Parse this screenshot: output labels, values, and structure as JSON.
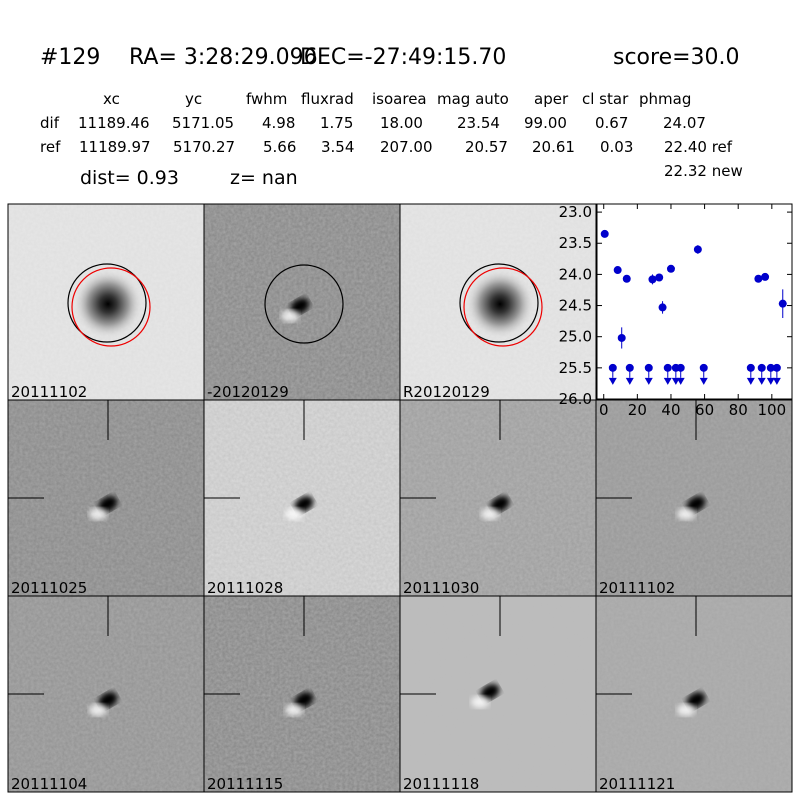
{
  "header": {
    "id": "#129",
    "ra": "RA= 3:28:29.096",
    "dec": "DEC=-27:49:15.70",
    "score": "score=30.0"
  },
  "table": {
    "columns": [
      "xc",
      "yc",
      "fwhm",
      "fluxrad",
      "isoarea",
      "mag auto",
      "aper",
      "cl star",
      "phmag"
    ],
    "rows": [
      {
        "label": "dif",
        "cells": [
          "11189.46",
          "5171.05",
          "4.98",
          "1.75",
          "18.00",
          "23.54",
          "99.00",
          "0.67",
          "24.07"
        ]
      },
      {
        "label": "ref",
        "cells": [
          "11189.97",
          "5170.27",
          "5.66",
          "3.54",
          "207.00",
          "20.57",
          "20.61",
          "0.03",
          "22.40 ref"
        ]
      }
    ],
    "extra": "22.32 new",
    "dist": "dist=  0.93",
    "z": "z=   nan"
  },
  "stamps": [
    {
      "label": "20111102",
      "color": "#000000"
    },
    {
      "label": "-20120129",
      "color": "#000000"
    },
    {
      "label": "R20120129",
      "color": "#000000"
    },
    {
      "label": "20111025",
      "color": "#000000"
    },
    {
      "label": "20111028",
      "color": "#000000"
    },
    {
      "label": "20111030",
      "color": "#000000"
    },
    {
      "label": "20111102",
      "color": "#ff0000"
    },
    {
      "label": "20111104",
      "color": "#000000"
    },
    {
      "label": "20111115",
      "color": "#000000"
    },
    {
      "label": "20111118",
      "color": "#000000"
    },
    {
      "label": "20111121",
      "color": "#000000"
    }
  ],
  "chart_data": {
    "type": "scatter",
    "inverted_y": true,
    "color": "#0000cc",
    "xlim": [
      -4,
      112
    ],
    "xticks": [
      0,
      20,
      40,
      60,
      80,
      100
    ],
    "ylim": [
      22.87,
      26.0
    ],
    "yticks": [
      {
        "value": 23.0,
        "label": "23.0"
      },
      {
        "value": 23.5,
        "label": "23.5"
      },
      {
        "value": 24.0,
        "label": "24.0"
      },
      {
        "value": 24.5,
        "label": "24.5"
      },
      {
        "value": 25.0,
        "label": "25.0"
      },
      {
        "value": 25.5,
        "label": "25.5"
      },
      {
        "value": 26.0,
        "label": "26.0"
      }
    ],
    "detections": {
      "x": [
        0.6,
        8.3,
        10.7,
        13.7,
        29,
        33,
        35,
        40,
        56,
        92,
        96,
        106.5
      ],
      "values": [
        23.35,
        23.93,
        25.02,
        24.07,
        24.08,
        24.05,
        24.53,
        23.91,
        23.6,
        24.07,
        24.04,
        24.47
      ],
      "errors": [
        0.03,
        0.05,
        0.17,
        0.04,
        0.08,
        0.04,
        0.1,
        0.04,
        0.07,
        0.03,
        0.03,
        0.23
      ]
    },
    "upper_limits": {
      "x": [
        5.4,
        15.5,
        26.8,
        38.1,
        42.9,
        45.8,
        59.5,
        87.5,
        94,
        99.4,
        103
      ],
      "values": [
        25.5,
        25.5,
        25.5,
        25.5,
        25.5,
        25.5,
        25.5,
        25.5,
        25.5,
        25.5,
        25.5
      ]
    }
  }
}
